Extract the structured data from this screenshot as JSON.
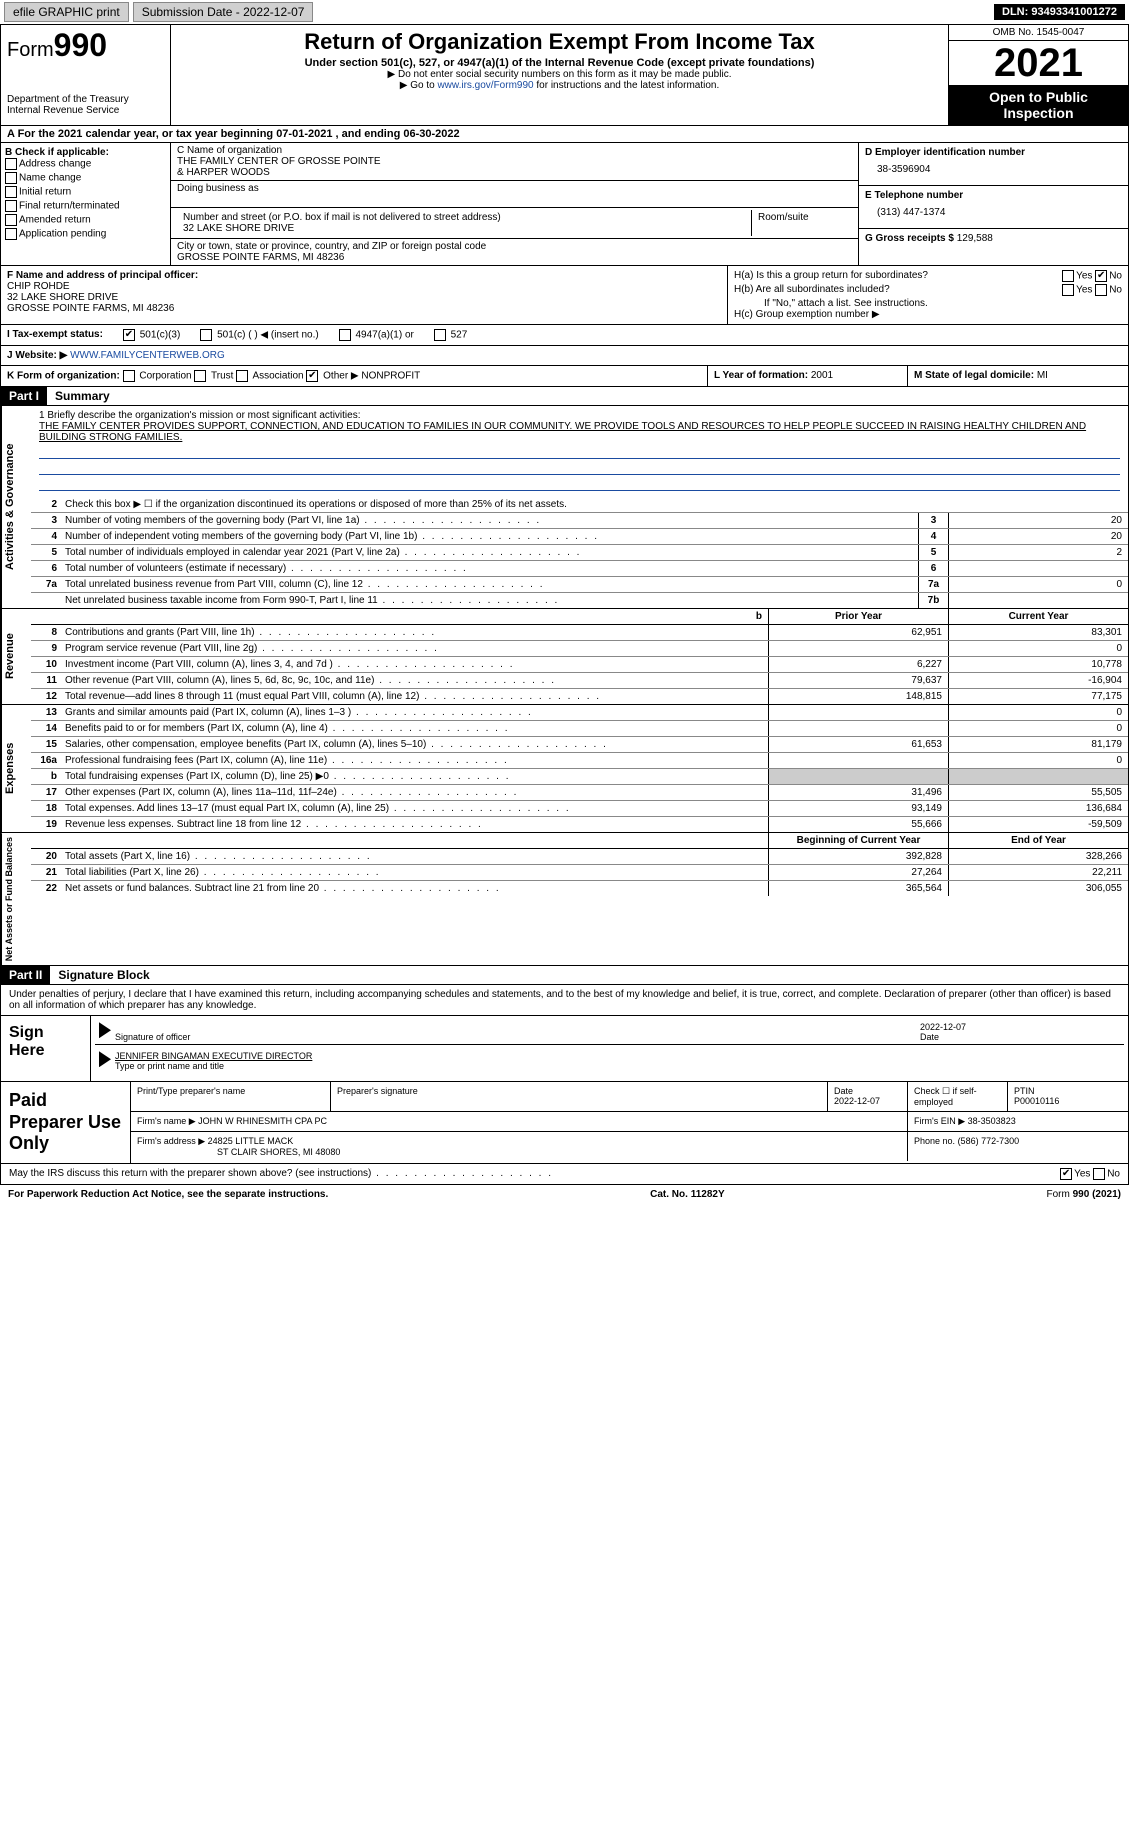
{
  "topbar": {
    "efile": "efile GRAPHIC print",
    "submission": "Submission Date - 2022-12-07",
    "dln": "DLN: 93493341001272"
  },
  "header": {
    "form_small": "Form",
    "form_big": "990",
    "title": "Return of Organization Exempt From Income Tax",
    "sub": "Under section 501(c), 527, or 4947(a)(1) of the Internal Revenue Code (except private foundations)",
    "note1": "▶ Do not enter social security numbers on this form as it may be made public.",
    "note2_pre": "▶ Go to ",
    "note2_link": "www.irs.gov/Form990",
    "note2_post": " for instructions and the latest information.",
    "dept": "Department of the Treasury\nInternal Revenue Service",
    "omb": "OMB No. 1545-0047",
    "year": "2021",
    "open": "Open to Public Inspection"
  },
  "row_a": "A For the 2021 calendar year, or tax year beginning 07-01-2021   , and ending 06-30-2022",
  "col_b": {
    "hdr": "B Check if applicable:",
    "items": [
      "Address change",
      "Name change",
      "Initial return",
      "Final return/terminated",
      "Amended return",
      "Application pending"
    ]
  },
  "col_c": {
    "name_lbl": "C Name of organization",
    "name1": "THE FAMILY CENTER OF GROSSE POINTE",
    "name2": "& HARPER WOODS",
    "dba_lbl": "Doing business as",
    "addr_lbl": "Number and street (or P.O. box if mail is not delivered to street address)",
    "room_lbl": "Room/suite",
    "addr": "32 LAKE SHORE DRIVE",
    "city_lbl": "City or town, state or province, country, and ZIP or foreign postal code",
    "city": "GROSSE POINTE FARMS, MI  48236"
  },
  "col_de": {
    "d_lbl": "D Employer identification number",
    "ein": "38-3596904",
    "e_lbl": "E Telephone number",
    "phone": "(313) 447-1374",
    "g_lbl": "G Gross receipts $",
    "g_val": "129,588"
  },
  "col_f": {
    "lbl": "F Name and address of principal officer:",
    "name": "CHIP ROHDE",
    "addr1": "32 LAKE SHORE DRIVE",
    "addr2": "GROSSE POINTE FARMS, MI  48236"
  },
  "col_h": {
    "ha": "H(a)  Is this a group return for subordinates?",
    "hb": "H(b)  Are all subordinates included?",
    "hb_note": "If \"No,\" attach a list. See instructions.",
    "hc": "H(c)  Group exemption number ▶",
    "yes": "Yes",
    "no": "No"
  },
  "row_i": {
    "lbl": "I  Tax-exempt status:",
    "o1": "501(c)(3)",
    "o2": "501(c) (   ) ◀ (insert no.)",
    "o3": "4947(a)(1) or",
    "o4": "527"
  },
  "row_j": {
    "lbl": "J  Website: ▶",
    "val": "WWW.FAMILYCENTERWEB.ORG"
  },
  "row_k": {
    "lbl": "K Form of organization:",
    "corp": "Corporation",
    "trust": "Trust",
    "assoc": "Association",
    "other": "Other ▶",
    "other_val": "NONPROFIT"
  },
  "row_l": {
    "lbl": "L Year of formation:",
    "val": "2001"
  },
  "row_m": {
    "lbl": "M State of legal domicile:",
    "val": "MI"
  },
  "part1": {
    "hdr": "Part I",
    "title": "Summary"
  },
  "mission": {
    "lbl": "1  Briefly describe the organization's mission or most significant activities:",
    "txt": "THE FAMILY CENTER PROVIDES SUPPORT, CONNECTION, AND EDUCATION TO FAMILIES IN OUR COMMUNITY. WE PROVIDE TOOLS AND RESOURCES TO HELP PEOPLE SUCCEED IN RAISING HEALTHY CHILDREN AND BUILDING STRONG FAMILIES."
  },
  "line2": "Check this box ▶ ☐  if the organization discontinued its operations or disposed of more than 25% of its net assets.",
  "vtabs": {
    "gov": "Activities & Governance",
    "rev": "Revenue",
    "exp": "Expenses",
    "net": "Net Assets or Fund Balances"
  },
  "gov_lines": [
    {
      "n": "3",
      "d": "Number of voting members of the governing body (Part VI, line 1a)",
      "box": "3",
      "v": "20"
    },
    {
      "n": "4",
      "d": "Number of independent voting members of the governing body (Part VI, line 1b)",
      "box": "4",
      "v": "20"
    },
    {
      "n": "5",
      "d": "Total number of individuals employed in calendar year 2021 (Part V, line 2a)",
      "box": "5",
      "v": "2"
    },
    {
      "n": "6",
      "d": "Total number of volunteers (estimate if necessary)",
      "box": "6",
      "v": ""
    },
    {
      "n": "7a",
      "d": "Total unrelated business revenue from Part VIII, column (C), line 12",
      "box": "7a",
      "v": "0"
    },
    {
      "n": "",
      "d": "Net unrelated business taxable income from Form 990-T, Part I, line 11",
      "box": "7b",
      "v": ""
    }
  ],
  "col_hdrs": {
    "prior": "Prior Year",
    "current": "Current Year",
    "beg": "Beginning of Current Year",
    "end": "End of Year"
  },
  "rev_lines": [
    {
      "n": "8",
      "d": "Contributions and grants (Part VIII, line 1h)",
      "p": "62,951",
      "c": "83,301"
    },
    {
      "n": "9",
      "d": "Program service revenue (Part VIII, line 2g)",
      "p": "",
      "c": "0"
    },
    {
      "n": "10",
      "d": "Investment income (Part VIII, column (A), lines 3, 4, and 7d )",
      "p": "6,227",
      "c": "10,778"
    },
    {
      "n": "11",
      "d": "Other revenue (Part VIII, column (A), lines 5, 6d, 8c, 9c, 10c, and 11e)",
      "p": "79,637",
      "c": "-16,904"
    },
    {
      "n": "12",
      "d": "Total revenue—add lines 8 through 11 (must equal Part VIII, column (A), line 12)",
      "p": "148,815",
      "c": "77,175"
    }
  ],
  "exp_lines": [
    {
      "n": "13",
      "d": "Grants and similar amounts paid (Part IX, column (A), lines 1–3 )",
      "p": "",
      "c": "0"
    },
    {
      "n": "14",
      "d": "Benefits paid to or for members (Part IX, column (A), line 4)",
      "p": "",
      "c": "0"
    },
    {
      "n": "15",
      "d": "Salaries, other compensation, employee benefits (Part IX, column (A), lines 5–10)",
      "p": "61,653",
      "c": "81,179"
    },
    {
      "n": "16a",
      "d": "Professional fundraising fees (Part IX, column (A), line 11e)",
      "p": "",
      "c": "0"
    },
    {
      "n": "b",
      "d": "Total fundraising expenses (Part IX, column (D), line 25) ▶0",
      "p": "shaded",
      "c": "shaded"
    },
    {
      "n": "17",
      "d": "Other expenses (Part IX, column (A), lines 11a–11d, 11f–24e)",
      "p": "31,496",
      "c": "55,505"
    },
    {
      "n": "18",
      "d": "Total expenses. Add lines 13–17 (must equal Part IX, column (A), line 25)",
      "p": "93,149",
      "c": "136,684"
    },
    {
      "n": "19",
      "d": "Revenue less expenses. Subtract line 18 from line 12",
      "p": "55,666",
      "c": "-59,509"
    }
  ],
  "net_lines": [
    {
      "n": "20",
      "d": "Total assets (Part X, line 16)",
      "p": "392,828",
      "c": "328,266"
    },
    {
      "n": "21",
      "d": "Total liabilities (Part X, line 26)",
      "p": "27,264",
      "c": "22,211"
    },
    {
      "n": "22",
      "d": "Net assets or fund balances. Subtract line 21 from line 20",
      "p": "365,564",
      "c": "306,055"
    }
  ],
  "part2": {
    "hdr": "Part II",
    "title": "Signature Block"
  },
  "sig_decl": "Under penalties of perjury, I declare that I have examined this return, including accompanying schedules and statements, and to the best of my knowledge and belief, it is true, correct, and complete. Declaration of preparer (other than officer) is based on all information of which preparer has any knowledge.",
  "sign": {
    "lbl": "Sign Here",
    "sig_lbl": "Signature of officer",
    "date": "2022-12-07",
    "date_lbl": "Date",
    "name": "JENNIFER BINGAMAN  EXECUTIVE DIRECTOR",
    "name_lbl": "Type or print name and title"
  },
  "prep": {
    "lbl": "Paid Preparer Use Only",
    "h1": "Print/Type preparer's name",
    "h2": "Preparer's signature",
    "h3": "Date",
    "h3v": "2022-12-07",
    "h4": "Check ☐ if self-employed",
    "h5": "PTIN",
    "h5v": "P00010116",
    "firm_lbl": "Firm's name    ▶",
    "firm": "JOHN W RHINESMITH CPA PC",
    "ein_lbl": "Firm's EIN ▶",
    "ein": "38-3503823",
    "addr_lbl": "Firm's address ▶",
    "addr1": "24825 LITTLE MACK",
    "addr2": "ST CLAIR SHORES, MI  48080",
    "phone_lbl": "Phone no.",
    "phone": "(586) 772-7300"
  },
  "footer": {
    "q": "May the IRS discuss this return with the preparer shown above? (see instructions)",
    "yes": "Yes",
    "no": "No",
    "pra": "For Paperwork Reduction Act Notice, see the separate instructions.",
    "cat": "Cat. No. 11282Y",
    "form": "Form 990 (2021)"
  }
}
